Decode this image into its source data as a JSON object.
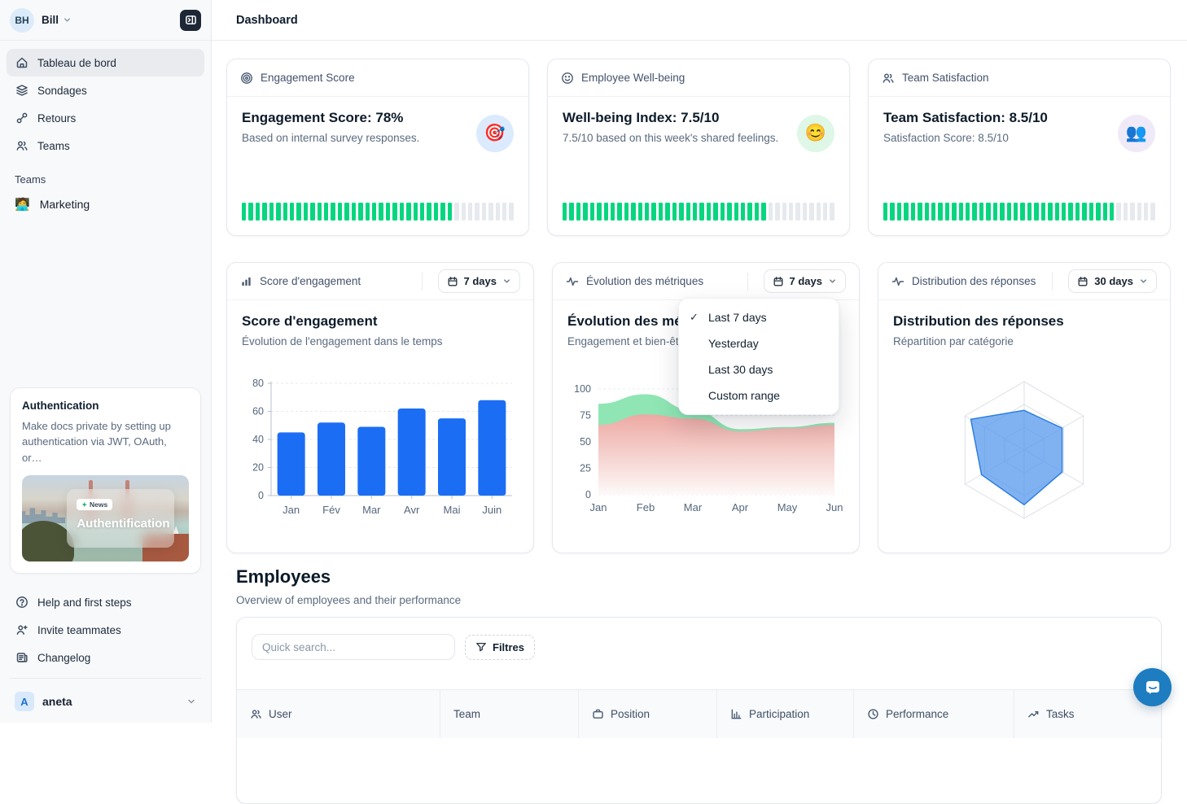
{
  "header": {
    "title": "Dashboard"
  },
  "sidebar": {
    "user_initials": "BH",
    "user_name": "Bill",
    "nav": [
      {
        "label": "Tableau de bord",
        "icon": "home-icon",
        "active": true
      },
      {
        "label": "Sondages",
        "icon": "layers-icon",
        "active": false
      },
      {
        "label": "Retours",
        "icon": "link-icon",
        "active": false
      },
      {
        "label": "Teams",
        "icon": "users-icon",
        "active": false
      }
    ],
    "section_label": "Teams",
    "team_item": {
      "emoji": "🧑‍💻",
      "label": "Marketing"
    },
    "promo": {
      "title": "Authentication",
      "description": "Make docs private by setting up authentication via JWT, OAuth, or…",
      "badge_dot": "✦",
      "badge": "News",
      "image_title": "Authentification"
    },
    "footer_nav": [
      {
        "label": "Help and first steps",
        "icon": "help-icon"
      },
      {
        "label": "Invite teammates",
        "icon": "invite-icon"
      },
      {
        "label": "Changelog",
        "icon": "changelog-icon"
      }
    ],
    "workspace": {
      "initial": "A",
      "name": "aneta"
    }
  },
  "metric_cards": [
    {
      "header": "Engagement Score",
      "header_icon": "target-icon",
      "title": "Engagement Score: 78%",
      "subtitle": "Based on internal survey responses.",
      "emoji": "🎯",
      "emoji_bg": "#dbeafe",
      "progress_total": 40,
      "progress_filled": 31
    },
    {
      "header": "Employee Well-being",
      "header_icon": "smiley-icon",
      "title": "Well-being Index: 7.5/10",
      "subtitle": "7.5/10 based on this week's shared feelings.",
      "emoji": "😊",
      "emoji_bg": "#def7e7",
      "progress_total": 40,
      "progress_filled": 30
    },
    {
      "header": "Team Satisfaction",
      "header_icon": "users-icon",
      "title": "Team Satisfaction: 8.5/10",
      "subtitle": "Satisfaction Score: 8.5/10",
      "emoji": "👥",
      "emoji_bg": "#f0eaf8",
      "progress_total": 40,
      "progress_filled": 34
    }
  ],
  "chart_cards": [
    {
      "header": "Score d'engagement",
      "header_icon": "bar-chart-icon",
      "range": "7 days"
    },
    {
      "header": "Évolution des métriques",
      "header_icon": "pulse-icon",
      "range": "7 days"
    },
    {
      "header": "Distribution des réponses",
      "header_icon": "pulse-icon",
      "range": "30 days"
    }
  ],
  "dropdown": {
    "check_glyph": "✓",
    "items": [
      {
        "label": "Last 7 days",
        "checked": true
      },
      {
        "label": "Yesterday",
        "checked": false
      },
      {
        "label": "Last 30 days",
        "checked": false
      },
      {
        "label": "Custom range",
        "checked": false
      }
    ]
  },
  "chart_data": [
    {
      "id": "engagement_bar",
      "type": "bar",
      "title": "Score d'engagement",
      "subtitle": "Évolution de l'engagement dans le temps",
      "categories": [
        "Jan",
        "Fév",
        "Mar",
        "Avr",
        "Mai",
        "Juin"
      ],
      "values": [
        45,
        52,
        49,
        62,
        55,
        68
      ],
      "ylim": [
        0,
        80
      ],
      "yticks": [
        0,
        20,
        40,
        60,
        80
      ],
      "bar_color": "#1b6ef3",
      "grid": "dashed"
    },
    {
      "id": "metrics_area",
      "type": "area",
      "title": "Évolution des métriques",
      "subtitle": "Engagement et bien-être",
      "x": [
        "Jan",
        "Feb",
        "Mar",
        "Apr",
        "May",
        "Jun"
      ],
      "series": [
        {
          "name": "engagement",
          "values": [
            86,
            95,
            80,
            62,
            64,
            68
          ],
          "color": "#8fe6b4"
        },
        {
          "name": "bien-être",
          "values": [
            66,
            76,
            72,
            60,
            63,
            66
          ],
          "color": "#eda9a3",
          "gradient_to": "#fdf9f8"
        }
      ],
      "ylim": [
        0,
        100
      ],
      "yticks": [
        0,
        25,
        50,
        75,
        100
      ],
      "grid": "dashed"
    },
    {
      "id": "responses_radar",
      "type": "radar",
      "title": "Distribution des réponses",
      "subtitle": "Répartition par catégorie",
      "axes": 6,
      "values": [
        58,
        64,
        64,
        80,
        72,
        90
      ],
      "max": 100,
      "levels": 3,
      "fill": "#4f94ed",
      "fill_opacity": 0.72,
      "stroke": "#2f7fe0",
      "grid_color": "#dbe0e6"
    }
  ],
  "employees": {
    "title": "Employees",
    "subtitle": "Overview of employees and their performance",
    "search_placeholder": "Quick search...",
    "filter_label": "Filtres",
    "columns": [
      {
        "label": "User",
        "icon": "users-icon"
      },
      {
        "label": "Team",
        "icon": ""
      },
      {
        "label": "Position",
        "icon": "briefcase-icon"
      },
      {
        "label": "Participation",
        "icon": "bar-chart-icon"
      },
      {
        "label": "Performance",
        "icon": "clock-icon"
      },
      {
        "label": "Tasks",
        "icon": "trend-up-icon"
      }
    ]
  },
  "colors": {
    "progress_green": "#06d67f",
    "progress_gray": "#e6e9ed",
    "accent_blue": "#1b6ef3"
  }
}
